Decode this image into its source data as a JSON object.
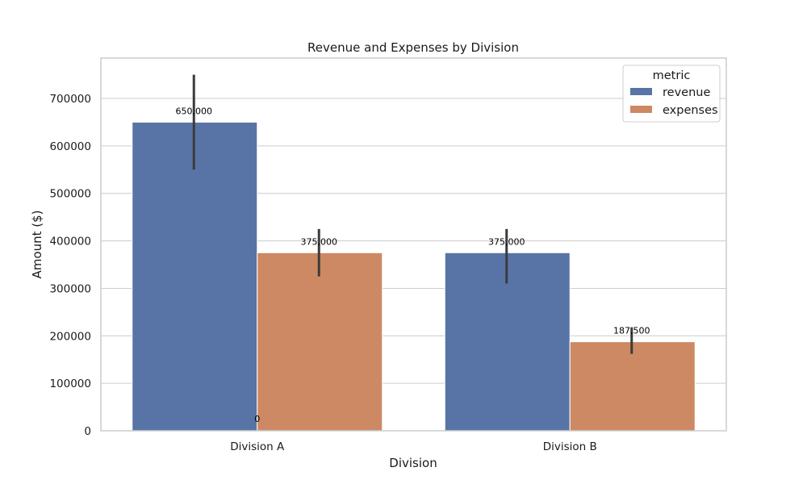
{
  "chart_data": {
    "type": "bar",
    "title": "Revenue and Expenses by Division",
    "xlabel": "Division",
    "ylabel": "Amount ($)",
    "categories": [
      "Division A",
      "Division B"
    ],
    "ylim": [
      0,
      785000
    ],
    "yticks": [
      0,
      100000,
      200000,
      300000,
      400000,
      500000,
      600000,
      700000
    ],
    "ytick_labels": [
      "0",
      "100000",
      "200000",
      "300000",
      "400000",
      "500000",
      "600000",
      "700000"
    ],
    "grid": true,
    "legend": {
      "title": "metric",
      "placement": "top-right"
    },
    "series": [
      {
        "name": "revenue",
        "color": "#5874a6",
        "values": [
          650000,
          375000
        ],
        "error_low": [
          550000,
          310000
        ],
        "error_high": [
          750000,
          425000
        ],
        "labels": [
          "650,000",
          "375,000"
        ]
      },
      {
        "name": "expenses",
        "color": "#cd8963",
        "values": [
          375000,
          187500
        ],
        "error_low": [
          325000,
          162000
        ],
        "error_high": [
          425000,
          218000
        ],
        "labels": [
          "375,000",
          "187,500"
        ]
      }
    ],
    "annotations": [
      {
        "text": "0",
        "category": "Division A",
        "value": 0
      }
    ]
  }
}
